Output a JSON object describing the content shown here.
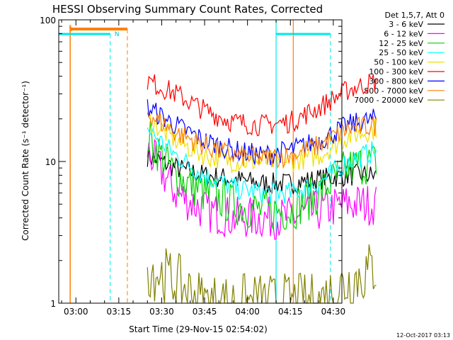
{
  "chart_data": {
    "type": "line",
    "title": "HESSI Observing Summary Count Rates, Corrected",
    "ylabel": "Corrected Count Rate (s⁻¹ detector⁻¹)",
    "xlabel": "Start Time (29-Nov-15 02:54:02)",
    "timestamp": "12-Oct-2017 03:13",
    "y_scale": "log",
    "ylim": [
      1,
      100
    ],
    "y_ticks": [
      "1",
      "10",
      "100"
    ],
    "xlim": [
      "02:54",
      "04:33"
    ],
    "x_ticks": [
      "03:00",
      "03:15",
      "03:30",
      "03:45",
      "04:00",
      "04:15",
      "04:30"
    ],
    "grid": false,
    "legend_position": "right, outside plot",
    "legend_header": "Det 1,5,7, Att 0",
    "flag_labels": {
      "saa": "S",
      "night": "N"
    },
    "x_min": [
      0,
      10,
      20,
      30,
      40,
      50,
      60,
      70,
      80
    ],
    "series": [
      {
        "name": "3 - 6 keV",
        "color": "#000000",
        "values": [
          11,
          9,
          8,
          7.5,
          7,
          7,
          7.5,
          8,
          8
        ]
      },
      {
        "name": "6 - 12 keV",
        "color": "#ff00ff",
        "values": [
          12,
          6,
          4.5,
          4,
          4,
          4,
          4.5,
          5,
          5
        ]
      },
      {
        "name": "12 - 25 keV",
        "color": "#00d200",
        "values": [
          15,
          8,
          6,
          5,
          4.5,
          4.5,
          6,
          9,
          10
        ]
      },
      {
        "name": "25 - 50 keV",
        "color": "#00ffff",
        "values": [
          17,
          11,
          8,
          6.5,
          6,
          6,
          7,
          10,
          12
        ]
      },
      {
        "name": "50 - 100 keV",
        "color": "#f0e000",
        "values": [
          20,
          14,
          11,
          10,
          10,
          10,
          11,
          15,
          17
        ]
      },
      {
        "name": "100 - 300 keV",
        "color": "#ff0000",
        "values": [
          37,
          30,
          23,
          19,
          18,
          19,
          24,
          32,
          37
        ]
      },
      {
        "name": "300 - 800 keV",
        "color": "#0000ff",
        "values": [
          24,
          18,
          14,
          12,
          11,
          12,
          14,
          18,
          20
        ]
      },
      {
        "name": "800 - 7000 keV",
        "color": "#ff8000",
        "values": [
          22,
          16,
          13,
          11,
          10.5,
          11,
          13,
          17,
          18
        ]
      },
      {
        "name": "7000 - 20000 keV",
        "color": "#808000",
        "values": [
          1.8,
          1.4,
          1,
          1,
          1,
          1,
          1,
          1.4,
          1.8
        ]
      }
    ]
  }
}
